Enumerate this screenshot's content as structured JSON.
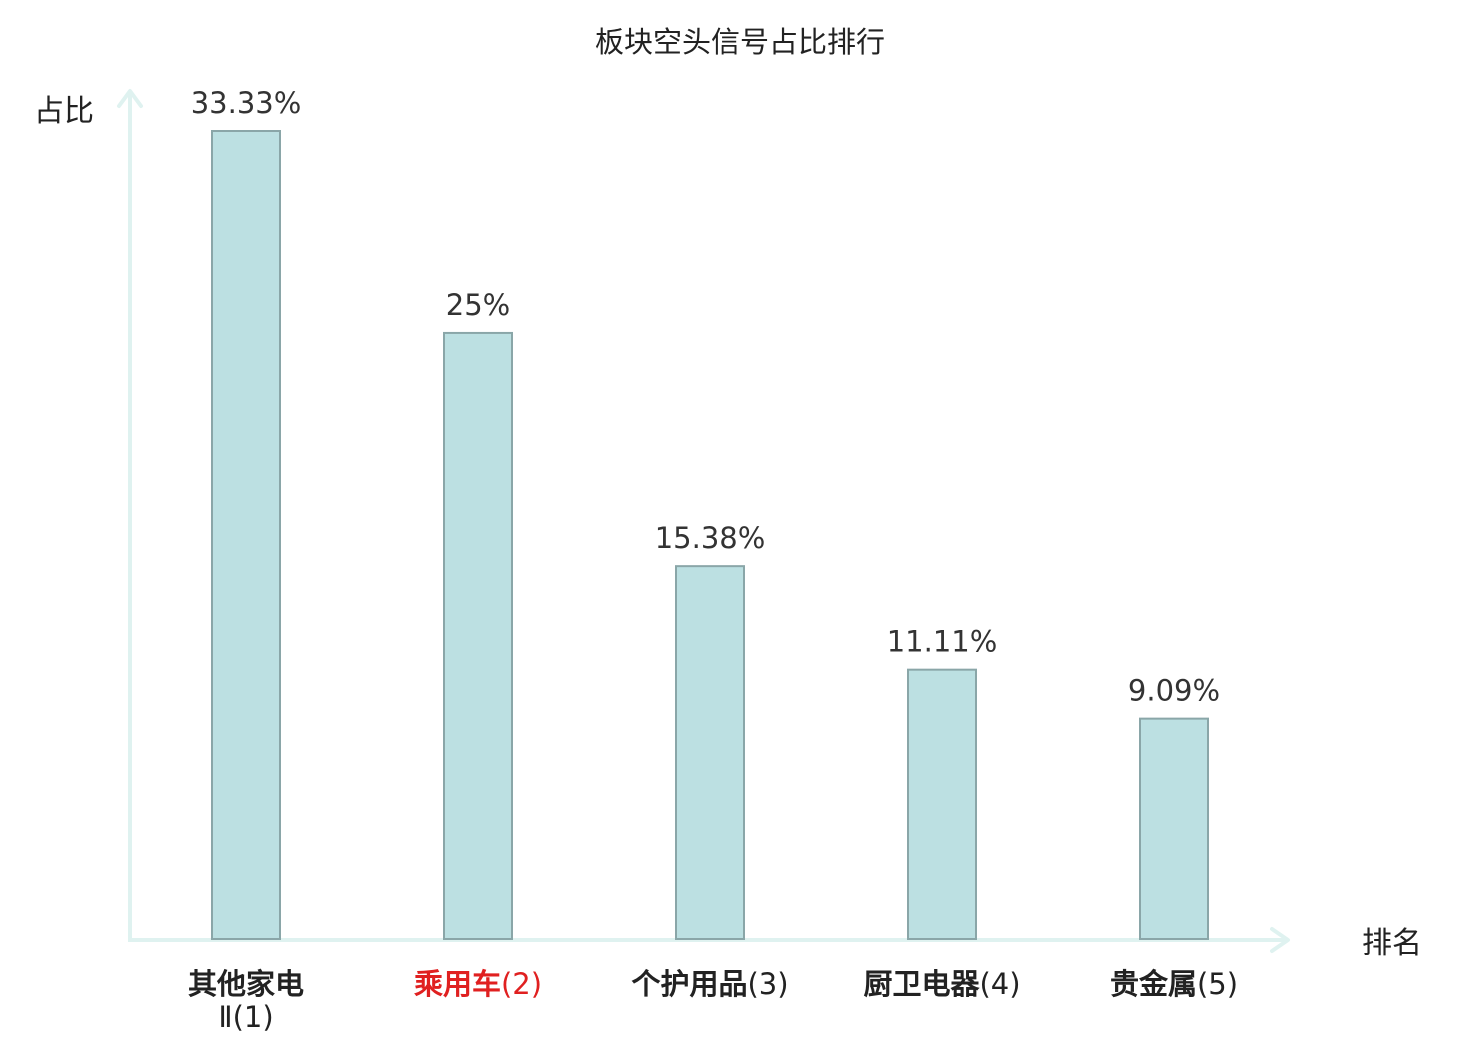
{
  "chart_data": {
    "type": "bar",
    "title": "板块空头信号占比排行",
    "xlabel": "排名",
    "ylabel": "占比",
    "categories": [
      {
        "name": "其他家电",
        "name_line2": "Ⅱ",
        "rank": "(1)",
        "highlight": false
      },
      {
        "name": "乘用车",
        "rank": "(2)",
        "highlight": true
      },
      {
        "name": "个护用品",
        "rank": "(3)",
        "highlight": false
      },
      {
        "name": "厨卫电器",
        "rank": "(4)",
        "highlight": false
      },
      {
        "name": "贵金属",
        "rank": "(5)",
        "highlight": false
      }
    ],
    "values": [
      33.33,
      25,
      15.38,
      11.11,
      9.09
    ],
    "value_labels": [
      "33.33%",
      "25%",
      "15.38%",
      "11.11%",
      "9.09%"
    ],
    "ylim": [
      0,
      33.33
    ],
    "grid": false,
    "legend": "none",
    "colors": {
      "bar_fill": "#bce0e2",
      "bar_stroke": "#8aa6a8",
      "axis": "#dff2f0",
      "text": "#222222",
      "highlight_text": "#e02020"
    }
  }
}
